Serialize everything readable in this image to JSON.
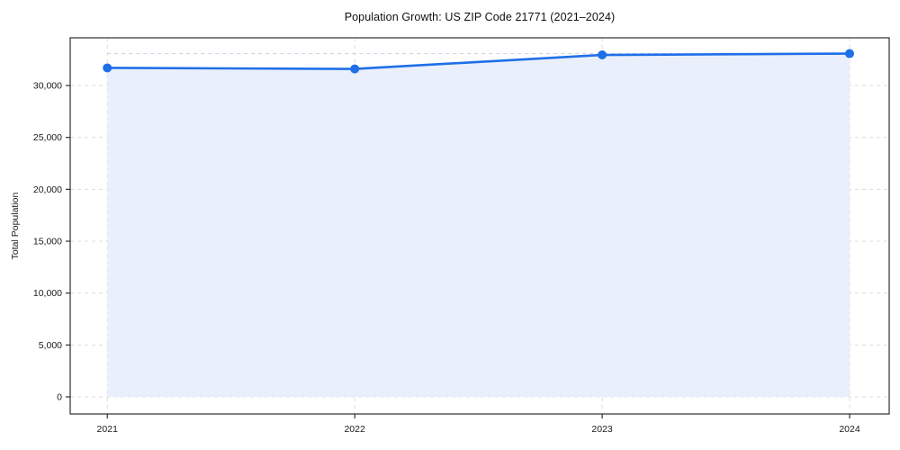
{
  "title": "Population Growth: US ZIP Code 21771 (2021–2024)",
  "chart_data": {
    "type": "area",
    "title": "Population Growth: US ZIP Code 21771 (2021–2024)",
    "xlabel": "",
    "ylabel": "Total Population",
    "x": [
      2021,
      2022,
      2023,
      2024
    ],
    "xtick_labels": [
      "2021",
      "2022",
      "2023",
      "2024"
    ],
    "series": [
      {
        "name": "Total Population",
        "values": [
          31700,
          31600,
          32950,
          33080
        ]
      }
    ],
    "yticks": [
      0,
      5000,
      10000,
      15000,
      20000,
      25000,
      30000
    ],
    "ytick_labels": [
      "0",
      "5,000",
      "10,000",
      "15,000",
      "20,000",
      "25,000",
      "30,000"
    ],
    "xlim": [
      2020.85,
      2024.16
    ],
    "ylim": [
      -1650,
      34600
    ],
    "grid": "dashed, horizontal and vertical",
    "legend": "none",
    "area_fill_baseline": 0,
    "reference_line": {
      "value": 33080,
      "style": "dashed"
    },
    "colors": {
      "line": "#1f6fe8",
      "marker": "#1f6fe8",
      "fill": "#e9effb",
      "grid": "#dcdcdc",
      "reference": "#c9d4e6",
      "spine": "#2e2e2e",
      "text": "#1a1a1a"
    }
  }
}
